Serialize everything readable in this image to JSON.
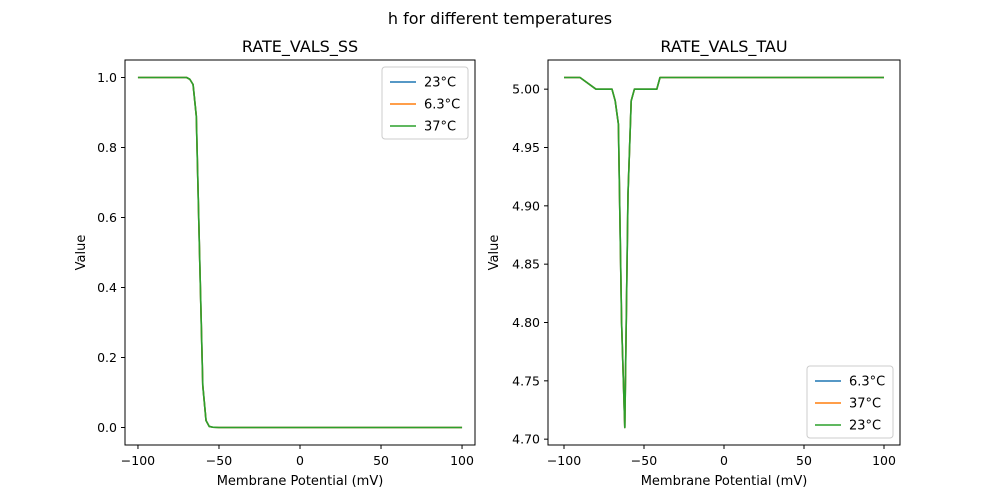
{
  "figure": {
    "suptitle": "h for different temperatures"
  },
  "chart_data": [
    {
      "type": "line",
      "title": "RATE_VALS_SS",
      "xlabel": "Membrane Potential (mV)",
      "ylabel": "Value",
      "xlim": [
        -108,
        108
      ],
      "ylim": [
        -0.05,
        1.05
      ],
      "xticks": [
        -100,
        -50,
        0,
        50,
        100
      ],
      "xtick_labels": [
        "−100",
        "−50",
        "0",
        "50",
        "100"
      ],
      "yticks": [
        0,
        0.2,
        0.4,
        0.6,
        0.8,
        1.0
      ],
      "ytick_labels": [
        "0.0",
        "0.2",
        "0.4",
        "0.6",
        "0.8",
        "1.0"
      ],
      "legend_position": "top-right",
      "series": [
        {
          "name": "23°C",
          "color": "#1f77b4",
          "x": [
            -100,
            -70,
            -68,
            -66,
            -64,
            -62,
            -60,
            -58,
            -56,
            -54,
            -50,
            0,
            50,
            100
          ],
          "y": [
            1.0,
            1.0,
            0.995,
            0.98,
            0.89,
            0.5,
            0.12,
            0.02,
            0.003,
            0.001,
            0.0,
            0.0,
            0.0,
            0.0
          ]
        },
        {
          "name": "6.3°C",
          "color": "#ff7f0e",
          "x": [
            -100,
            -70,
            -68,
            -66,
            -64,
            -62,
            -60,
            -58,
            -56,
            -54,
            -50,
            0,
            50,
            100
          ],
          "y": [
            1.0,
            1.0,
            0.995,
            0.98,
            0.89,
            0.5,
            0.12,
            0.02,
            0.003,
            0.001,
            0.0,
            0.0,
            0.0,
            0.0
          ]
        },
        {
          "name": "37°C",
          "color": "#2ca02c",
          "x": [
            -100,
            -70,
            -68,
            -66,
            -64,
            -62,
            -60,
            -58,
            -56,
            -54,
            -50,
            0,
            50,
            100
          ],
          "y": [
            1.0,
            1.0,
            0.995,
            0.98,
            0.89,
            0.5,
            0.12,
            0.02,
            0.003,
            0.001,
            0.0,
            0.0,
            0.0,
            0.0
          ]
        }
      ]
    },
    {
      "type": "line",
      "title": "RATE_VALS_TAU",
      "xlabel": "Membrane Potential (mV)",
      "ylabel": "Value",
      "xlim": [
        -110,
        110
      ],
      "ylim": [
        4.695,
        5.025
      ],
      "xticks": [
        -100,
        -50,
        0,
        50,
        100
      ],
      "xtick_labels": [
        "−100",
        "−50",
        "0",
        "50",
        "100"
      ],
      "yticks": [
        4.7,
        4.75,
        4.8,
        4.85,
        4.9,
        4.95,
        5.0
      ],
      "ytick_labels": [
        "4.70",
        "4.75",
        "4.80",
        "4.85",
        "4.90",
        "4.95",
        "5.00"
      ],
      "legend_position": "bottom-right",
      "series": [
        {
          "name": "6.3°C",
          "color": "#1f77b4",
          "x": [
            -100,
            -90,
            -80,
            -70,
            -68,
            -66,
            -64,
            -62,
            -60,
            -58,
            -56,
            -50,
            -42,
            -40,
            0,
            50,
            100
          ],
          "y": [
            5.01,
            5.01,
            5.0,
            5.0,
            4.99,
            4.97,
            4.8,
            4.71,
            4.91,
            4.99,
            5.0,
            5.0,
            5.0,
            5.01,
            5.01,
            5.01,
            5.01
          ]
        },
        {
          "name": "37°C",
          "color": "#ff7f0e",
          "x": [
            -100,
            -90,
            -80,
            -70,
            -68,
            -66,
            -64,
            -62,
            -60,
            -58,
            -56,
            -50,
            -42,
            -40,
            0,
            50,
            100
          ],
          "y": [
            5.01,
            5.01,
            5.0,
            5.0,
            4.99,
            4.97,
            4.8,
            4.71,
            4.91,
            4.99,
            5.0,
            5.0,
            5.0,
            5.01,
            5.01,
            5.01,
            5.01
          ]
        },
        {
          "name": "23°C",
          "color": "#2ca02c",
          "x": [
            -100,
            -90,
            -80,
            -70,
            -68,
            -66,
            -64,
            -62,
            -60,
            -58,
            -56,
            -50,
            -42,
            -40,
            0,
            50,
            100
          ],
          "y": [
            5.01,
            5.01,
            5.0,
            5.0,
            4.99,
            4.97,
            4.8,
            4.71,
            4.91,
            4.99,
            5.0,
            5.0,
            5.0,
            5.01,
            5.01,
            5.01,
            5.01
          ]
        }
      ]
    }
  ]
}
